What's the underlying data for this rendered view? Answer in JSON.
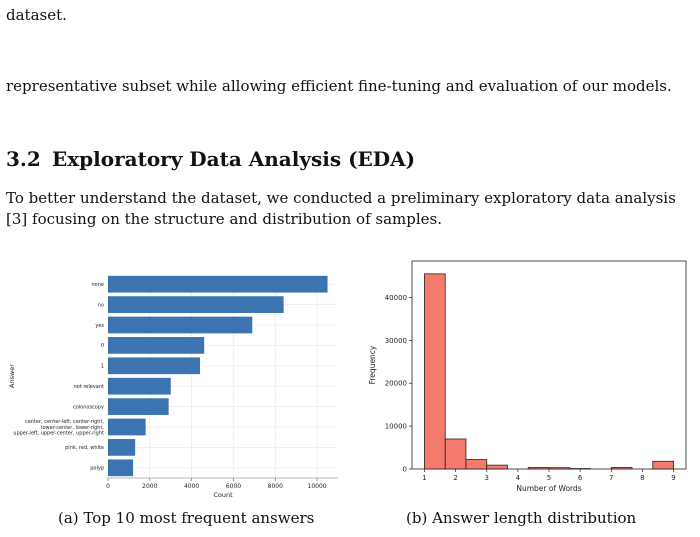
{
  "paragraphs": {
    "p1": "dataset.",
    "p2": "representative subset while allowing efficient fine-tuning and evaluation of our models.",
    "p3": "To better understand the dataset, we conducted a preliminary exploratory data analysis [3] focusing on the structure and distribution of samples."
  },
  "section": {
    "number": "3.2",
    "title": "Exploratory Data Analysis (EDA)"
  },
  "figures": {
    "a": {
      "caption": "(a) Top 10 most frequent answers"
    },
    "b": {
      "caption": "(b) Answer length distribution"
    }
  },
  "chart_data": [
    {
      "type": "bar",
      "orientation": "horizontal",
      "color": "#3b74b0",
      "categories": [
        "none",
        "no",
        "yes",
        "0",
        "1",
        "not relevant",
        "colonoscopy",
        "center, center-left, center-right,\nlower-center, lower-right,\nupper-left, upper-center, upper-right",
        "pink, red, white",
        "polyp"
      ],
      "values": [
        10500,
        8400,
        6900,
        4600,
        4400,
        3000,
        2900,
        1800,
        1300,
        1200
      ],
      "xlabel": "Count",
      "ylabel": "Answer",
      "xlim": [
        0,
        11000
      ],
      "xticks": [
        0,
        2000,
        4000,
        6000,
        8000,
        10000
      ],
      "grid": true
    },
    {
      "type": "bar",
      "subtype": "histogram",
      "color": "#f47a6c",
      "edge_color": "#222222",
      "bin_edges": [
        1,
        1.667,
        2.333,
        3,
        3.667,
        4.333,
        5,
        5.667,
        6.333,
        7,
        7.667,
        8.333,
        9
      ],
      "values": [
        45500,
        7000,
        2200,
        900,
        0,
        350,
        300,
        100,
        0,
        350,
        0,
        1800
      ],
      "xlabel": "Number of Words",
      "ylabel": "Frequency",
      "xlim": [
        0.6,
        9.4
      ],
      "ylim": [
        0,
        48500
      ],
      "xticks": [
        1,
        2,
        3,
        4,
        5,
        6,
        7,
        8,
        9
      ],
      "yticks": [
        0,
        10000,
        20000,
        30000,
        40000
      ],
      "grid": false
    }
  ]
}
